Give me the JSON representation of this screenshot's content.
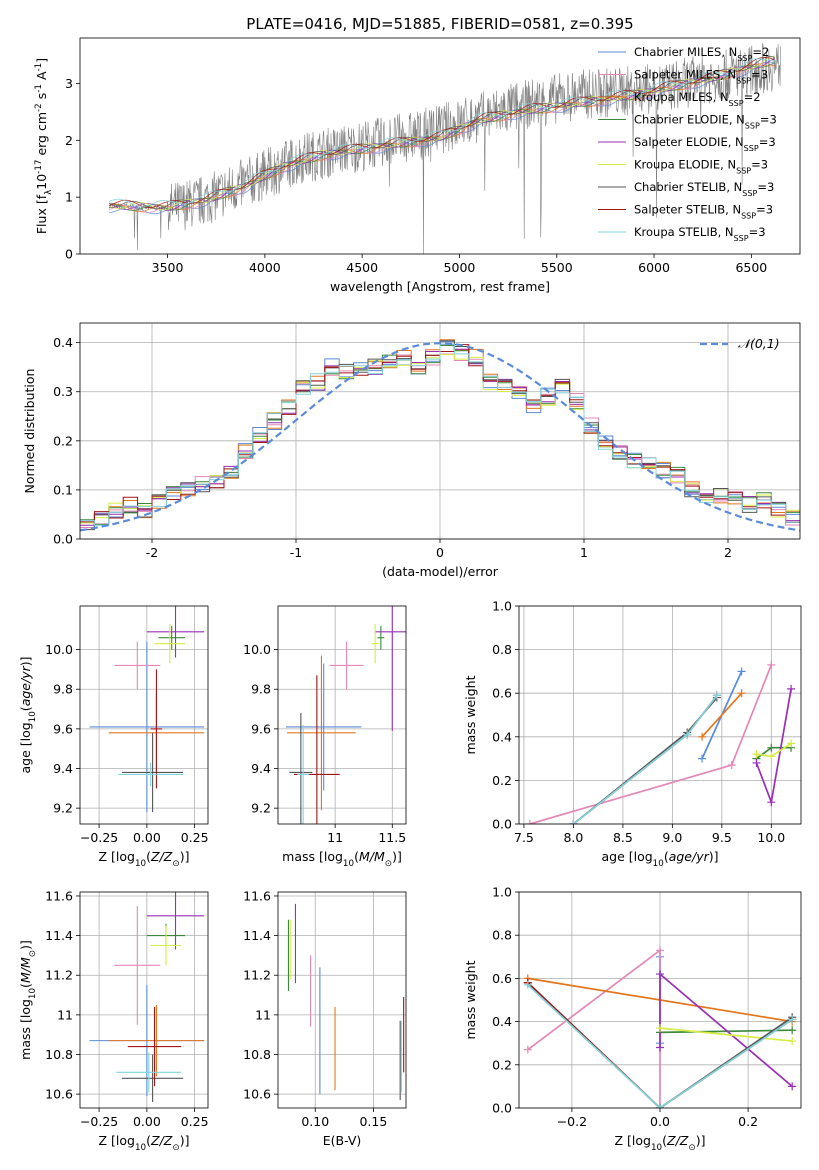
{
  "figure": {
    "title": "PLATE=0416, MJD=51885, FIBERID=0581, z=0.395"
  },
  "colors": {
    "chabrier_miles": "#5b8bd9",
    "salpeter_miles": "#e487b8",
    "kroupa_miles": "#e4761c",
    "chabrier_elodie": "#3a8a3a",
    "salpeter_elodie": "#9a2fb5",
    "kroupa_elodie": "#d6ec45",
    "chabrier_stelib": "#555555",
    "salpeter_stelib": "#a31515",
    "kroupa_stelib": "#80d4dc",
    "spectrum": "#808080",
    "gaussian": "#5b8bd9",
    "grid": "#b0b0b0"
  },
  "chart_data": [
    {
      "id": "spectrum",
      "type": "line",
      "xlabel": "wavelength [Angstrom, rest frame]",
      "ylabel": "Flux [f$_\\lambda$10$^{-17}$ erg cm$^{-2}$ s$^{-1}$ A$^{-1}$]",
      "xlim": [
        3050,
        6750
      ],
      "ylim": [
        0,
        3.8
      ],
      "xticks": [
        3500,
        4000,
        4500,
        5000,
        5500,
        6000,
        6500
      ],
      "yticks": [
        0,
        1,
        2,
        3
      ],
      "grid": false,
      "legend_position": "upper-right",
      "legend": [
        {
          "label": "Chabrier MILES, N$_{SSP}$=2",
          "color_key": "chabrier_miles"
        },
        {
          "label": "Salpeter MILES, N$_{SSP}$=3",
          "color_key": "salpeter_miles"
        },
        {
          "label": "Kroupa MILES, N$_{SSP}$=2",
          "color_key": "kroupa_miles"
        },
        {
          "label": "Chabrier ELODIE, N$_{SSP}$=3",
          "color_key": "chabrier_elodie"
        },
        {
          "label": "Salpeter ELODIE, N$_{SSP}$=3",
          "color_key": "salpeter_elodie"
        },
        {
          "label": "Kroupa ELODIE, N$_{SSP}$=3",
          "color_key": "kroupa_elodie"
        },
        {
          "label": "Chabrier STELIB, N$_{SSP}$=3",
          "color_key": "chabrier_stelib"
        },
        {
          "label": "Salpeter STELIB, N$_{SSP}$=3",
          "color_key": "salpeter_stelib"
        },
        {
          "label": "Kroupa STELIB, N$_{SSP}$=3",
          "color_key": "kroupa_stelib"
        }
      ],
      "observed_spectrum_envelope": {
        "x": [
          3200,
          3500,
          3700,
          4000,
          4200,
          4500,
          4800,
          5000,
          5300,
          5600,
          6000,
          6300,
          6600
        ],
        "y": [
          0.85,
          0.8,
          0.95,
          1.4,
          1.7,
          1.9,
          2.1,
          2.3,
          2.6,
          2.8,
          2.9,
          3.1,
          3.3
        ]
      },
      "model_fit": {
        "x": [
          3200,
          3500,
          3700,
          3900,
          4100,
          4300,
          4500,
          4700,
          4900,
          5100,
          5300,
          5500,
          5700,
          5900,
          6100,
          6300,
          6500,
          6600
        ],
        "y": [
          0.85,
          0.82,
          0.95,
          1.2,
          1.55,
          1.75,
          1.85,
          1.95,
          2.05,
          2.35,
          2.5,
          2.6,
          2.7,
          2.8,
          2.95,
          3.1,
          3.3,
          3.4
        ]
      }
    },
    {
      "id": "residual_hist",
      "type": "line",
      "xlabel": "(data-model)/error",
      "ylabel": "Normed distribution",
      "xlim": [
        -2.5,
        2.5
      ],
      "ylim": [
        0,
        0.44
      ],
      "xticks": [
        -2,
        -1,
        0,
        1,
        2
      ],
      "yticks": [
        0.0,
        0.1,
        0.2,
        0.3,
        0.4
      ],
      "grid": true,
      "legend_position": "upper-right",
      "legend": [
        {
          "label": "$\\mathcal{N}(0,1)$",
          "color_key": "gaussian"
        }
      ],
      "bin_centers": [
        -2.45,
        -2.35,
        -2.25,
        -2.15,
        -2.05,
        -1.95,
        -1.85,
        -1.75,
        -1.65,
        -1.55,
        -1.45,
        -1.35,
        -1.25,
        -1.15,
        -1.05,
        -0.95,
        -0.85,
        -0.75,
        -0.65,
        -0.55,
        -0.45,
        -0.35,
        -0.25,
        -0.15,
        -0.05,
        0.05,
        0.15,
        0.25,
        0.35,
        0.45,
        0.55,
        0.65,
        0.75,
        0.85,
        0.95,
        1.05,
        1.15,
        1.25,
        1.35,
        1.45,
        1.55,
        1.65,
        1.75,
        1.85,
        1.95,
        2.05,
        2.15,
        2.25,
        2.35,
        2.45
      ],
      "mean_hist": [
        0.035,
        0.045,
        0.06,
        0.07,
        0.06,
        0.075,
        0.09,
        0.1,
        0.11,
        0.12,
        0.14,
        0.18,
        0.21,
        0.24,
        0.27,
        0.31,
        0.32,
        0.35,
        0.34,
        0.35,
        0.35,
        0.36,
        0.37,
        0.35,
        0.37,
        0.39,
        0.38,
        0.37,
        0.32,
        0.31,
        0.3,
        0.27,
        0.29,
        0.31,
        0.28,
        0.23,
        0.2,
        0.18,
        0.16,
        0.15,
        0.14,
        0.13,
        0.1,
        0.09,
        0.09,
        0.08,
        0.07,
        0.08,
        0.06,
        0.045
      ]
    },
    {
      "id": "age_vs_Z",
      "type": "scatter",
      "xlabel": "Z [log$_{10}$($Z/Z_\\odot$)]",
      "ylabel": "age  [log$_{10}$($age/yr$)]",
      "xlim": [
        -0.35,
        0.32
      ],
      "ylim": [
        9.12,
        10.22
      ],
      "xticks": [
        -0.25,
        0.0,
        0.25
      ],
      "xtick_labels": [
        "−0.25",
        "0.00",
        "0.25"
      ],
      "yticks": [
        9.2,
        9.4,
        9.6,
        9.8,
        10.0
      ],
      "yticklabels": [
        "9.2",
        "9.4",
        "9.6",
        "9.8",
        "10.0"
      ],
      "grid": true,
      "points": [
        {
          "color_key": "chabrier_miles",
          "x": 0.0,
          "xerr": 0.3,
          "y": 9.61,
          "yerr": 0.43
        },
        {
          "color_key": "kroupa_miles",
          "x": 0.05,
          "xerr": 0.25,
          "y": 9.58,
          "yerr": 0.2
        },
        {
          "color_key": "salpeter_miles",
          "x": -0.05,
          "xerr": 0.12,
          "y": 9.92,
          "yerr": 0.12
        },
        {
          "color_key": "chabrier_elodie",
          "x": 0.13,
          "xerr": 0.07,
          "y": 10.06,
          "yerr": 0.06
        },
        {
          "color_key": "salpeter_elodie",
          "x": 0.15,
          "xerr": 0.15,
          "y": 10.09,
          "yerr": 0.13
        },
        {
          "color_key": "kroupa_elodie",
          "x": 0.12,
          "xerr": 0.08,
          "y": 10.03,
          "yerr": 0.1
        },
        {
          "color_key": "chabrier_stelib",
          "x": 0.03,
          "xerr": 0.16,
          "y": 9.38,
          "yerr": 0.2
        },
        {
          "color_key": "salpeter_stelib",
          "x": 0.05,
          "xerr": 0.03,
          "y": 9.6,
          "yerr": 0.3
        },
        {
          "color_key": "kroupa_stelib",
          "x": 0.02,
          "xerr": 0.17,
          "y": 9.37,
          "yerr": 0.06
        }
      ]
    },
    {
      "id": "age_vs_mass",
      "type": "scatter",
      "xlabel": "mass [log$_{10}$($M/M_\\odot$)]",
      "ylabel": "",
      "xlim": [
        10.5,
        11.62
      ],
      "ylim": [
        9.12,
        10.22
      ],
      "xticks": [
        11.0,
        11.5
      ],
      "yticks": [
        9.2,
        9.4,
        9.6,
        9.8,
        10.0
      ],
      "yticklabels": [
        "9.2",
        "9.4",
        "9.6",
        "9.8",
        "10.0"
      ],
      "grid": true,
      "points": [
        {
          "color_key": "chabrier_miles",
          "x": 10.9,
          "xerr": 0.33,
          "y": 9.61,
          "yerr": 0.32
        },
        {
          "color_key": "kroupa_miles",
          "x": 10.88,
          "xerr": 0.3,
          "y": 9.58,
          "yerr": 0.39
        },
        {
          "color_key": "salpeter_miles",
          "x": 11.1,
          "xerr": 0.15,
          "y": 9.92,
          "yerr": 0.12
        },
        {
          "color_key": "chabrier_elodie",
          "x": 11.4,
          "xerr": 0.03,
          "y": 10.06,
          "yerr": 0.06
        },
        {
          "color_key": "salpeter_elodie",
          "x": 11.5,
          "xerr": 0.15,
          "y": 10.09,
          "yerr": 0.5
        },
        {
          "color_key": "kroupa_elodie",
          "x": 11.35,
          "xerr": 0.03,
          "y": 10.03,
          "yerr": 0.1
        },
        {
          "color_key": "chabrier_stelib",
          "x": 10.7,
          "xerr": 0.1,
          "y": 9.38,
          "yerr": 0.3
        },
        {
          "color_key": "salpeter_stelib",
          "x": 10.84,
          "xerr": 0.2,
          "y": 9.37,
          "yerr": 0.5
        },
        {
          "color_key": "kroupa_stelib",
          "x": 10.72,
          "xerr": 0.05,
          "y": 9.37,
          "yerr": 0.25
        }
      ]
    },
    {
      "id": "weight_vs_age",
      "type": "line",
      "xlabel": "age  [log$_{10}$($age/yr$)]",
      "ylabel": "mass weight",
      "xlim": [
        7.45,
        10.3
      ],
      "ylim": [
        0,
        1
      ],
      "xticks": [
        7.5,
        8.0,
        8.5,
        9.0,
        9.5,
        10.0
      ],
      "xticklabels": [
        "7.5",
        "8.0",
        "8.5",
        "9.0",
        "9.5",
        "10.0"
      ],
      "yticks": [
        0.0,
        0.2,
        0.4,
        0.6,
        0.8,
        1.0
      ],
      "grid": true,
      "series": [
        {
          "color_key": "chabrier_miles",
          "x": [
            9.3,
            9.7
          ],
          "y": [
            0.3,
            0.7
          ]
        },
        {
          "color_key": "salpeter_miles",
          "x": [
            7.56,
            9.6,
            10.0
          ],
          "y": [
            0.0,
            0.27,
            0.73
          ]
        },
        {
          "color_key": "kroupa_miles",
          "x": [
            9.3,
            9.7
          ],
          "y": [
            0.4,
            0.6
          ]
        },
        {
          "color_key": "chabrier_elodie",
          "x": [
            9.85,
            10.0,
            10.2
          ],
          "y": [
            0.3,
            0.35,
            0.35
          ]
        },
        {
          "color_key": "salpeter_elodie",
          "x": [
            9.85,
            10.0,
            10.2
          ],
          "y": [
            0.28,
            0.1,
            0.62
          ]
        },
        {
          "color_key": "kroupa_elodie",
          "x": [
            9.85,
            10.0,
            10.2
          ],
          "y": [
            0.32,
            0.31,
            0.37
          ]
        },
        {
          "color_key": "chabrier_stelib",
          "x": [
            8.0,
            9.15,
            9.45
          ],
          "y": [
            0.0,
            0.42,
            0.58
          ]
        },
        {
          "color_key": "salpeter_stelib",
          "x": [
            8.0,
            9.15,
            9.45
          ],
          "y": [
            0.0,
            0.41,
            0.59
          ]
        },
        {
          "color_key": "kroupa_stelib",
          "x": [
            8.0,
            9.15,
            9.45
          ],
          "y": [
            0.0,
            0.41,
            0.59
          ]
        }
      ]
    },
    {
      "id": "mass_vs_Z",
      "type": "scatter",
      "xlabel": "Z [log$_{10}$($Z/Z_\\odot$)]",
      "ylabel": "mass [log$_{10}$($M/M_\\odot$)]",
      "xlim": [
        -0.35,
        0.32
      ],
      "ylim": [
        10.53,
        11.62
      ],
      "xticks": [
        -0.25,
        0.0,
        0.25
      ],
      "xtick_labels": [
        "−0.25",
        "0.00",
        "0.25"
      ],
      "yticks": [
        10.6,
        10.8,
        11.0,
        11.2,
        11.4,
        11.6
      ],
      "grid": true,
      "points": [
        {
          "color_key": "chabrier_miles",
          "x": 0.0,
          "xerr": 0.3,
          "y": 10.87,
          "yerr": 0.28
        },
        {
          "color_key": "kroupa_miles",
          "x": 0.05,
          "xerr": 0.25,
          "y": 10.87,
          "yerr": 0.18
        },
        {
          "color_key": "salpeter_miles",
          "x": -0.05,
          "xerr": 0.12,
          "y": 11.25,
          "yerr": 0.3
        },
        {
          "color_key": "chabrier_elodie",
          "x": 0.1,
          "xerr": 0.1,
          "y": 11.4,
          "yerr": 0.06
        },
        {
          "color_key": "salpeter_elodie",
          "x": 0.15,
          "xerr": 0.15,
          "y": 11.5,
          "yerr": 0.17
        },
        {
          "color_key": "kroupa_elodie",
          "x": 0.1,
          "xerr": 0.08,
          "y": 11.35,
          "yerr": 0.1
        },
        {
          "color_key": "chabrier_stelib",
          "x": 0.03,
          "xerr": 0.16,
          "y": 10.68,
          "yerr": 0.12
        },
        {
          "color_key": "salpeter_stelib",
          "x": 0.04,
          "xerr": 0.14,
          "y": 10.84,
          "yerr": 0.2
        },
        {
          "color_key": "kroupa_stelib",
          "x": 0.01,
          "xerr": 0.17,
          "y": 10.71,
          "yerr": 0.1
        }
      ]
    },
    {
      "id": "mass_vs_ebv",
      "type": "scatter",
      "xlabel": "E(B-V)",
      "ylabel": "",
      "xlim": [
        0.068,
        0.178
      ],
      "ylim": [
        10.53,
        11.62
      ],
      "xticks": [
        0.1,
        0.15
      ],
      "xticklabels": [
        "0.10",
        "0.15"
      ],
      "yticks": [
        10.6,
        10.8,
        11.0,
        11.2,
        11.4,
        11.6
      ],
      "grid": true,
      "points": [
        {
          "color_key": "chabrier_miles",
          "x": 0.104,
          "xerr": 0.0,
          "y": 10.92,
          "yerr": 0.32
        },
        {
          "color_key": "kroupa_miles",
          "x": 0.117,
          "xerr": 0.0,
          "y": 10.83,
          "yerr": 0.21
        },
        {
          "color_key": "salpeter_miles",
          "x": 0.096,
          "xerr": 0.0,
          "y": 11.12,
          "yerr": 0.18
        },
        {
          "color_key": "chabrier_elodie",
          "x": 0.077,
          "xerr": 0.0,
          "y": 11.3,
          "yerr": 0.18
        },
        {
          "color_key": "salpeter_elodie",
          "x": 0.083,
          "xerr": 0.0,
          "y": 11.36,
          "yerr": 0.2
        },
        {
          "color_key": "kroupa_elodie",
          "x": 0.079,
          "xerr": 0.0,
          "y": 11.33,
          "yerr": 0.15
        },
        {
          "color_key": "chabrier_stelib",
          "x": 0.173,
          "xerr": 0.0,
          "y": 10.77,
          "yerr": 0.2
        },
        {
          "color_key": "salpeter_stelib",
          "x": 0.176,
          "xerr": 0.0,
          "y": 10.9,
          "yerr": 0.19
        },
        {
          "color_key": "kroupa_stelib",
          "x": 0.174,
          "xerr": 0.0,
          "y": 10.79,
          "yerr": 0.18
        }
      ]
    },
    {
      "id": "weight_vs_Z",
      "type": "line",
      "xlabel": "Z [log$_{10}$($Z/Z_\\odot$)]",
      "ylabel": "mass weight",
      "xlim": [
        -0.32,
        0.32
      ],
      "ylim": [
        0,
        1
      ],
      "xticks": [
        -0.2,
        0.0,
        0.2
      ],
      "xtick_labels": [
        "−0.2",
        "0.0",
        "0.2"
      ],
      "yticks": [
        0.0,
        0.2,
        0.4,
        0.6,
        0.8,
        1.0
      ],
      "grid": true,
      "series": [
        {
          "color_key": "chabrier_miles",
          "x": [
            0.0,
            0.0
          ],
          "y": [
            0.3,
            0.7
          ]
        },
        {
          "color_key": "salpeter_miles",
          "x": [
            -0.3,
            0.0,
            0.0
          ],
          "y": [
            0.27,
            0.73,
            0.0
          ]
        },
        {
          "color_key": "kroupa_miles",
          "x": [
            -0.3,
            0.3
          ],
          "y": [
            0.6,
            0.4
          ]
        },
        {
          "color_key": "chabrier_elodie",
          "x": [
            0.0,
            0.3
          ],
          "y": [
            0.35,
            0.36
          ]
        },
        {
          "color_key": "salpeter_elodie",
          "x": [
            0.0,
            0.0,
            0.3
          ],
          "y": [
            0.28,
            0.62,
            0.1
          ]
        },
        {
          "color_key": "kroupa_elodie",
          "x": [
            0.0,
            0.3
          ],
          "y": [
            0.37,
            0.31
          ]
        },
        {
          "color_key": "chabrier_stelib",
          "x": [
            -0.3,
            0.0,
            0.3
          ],
          "y": [
            0.58,
            0.0,
            0.42
          ]
        },
        {
          "color_key": "salpeter_stelib",
          "x": [
            -0.3,
            0.0,
            0.3
          ],
          "y": [
            0.58,
            0.0,
            0.41
          ]
        },
        {
          "color_key": "kroupa_stelib",
          "x": [
            -0.3,
            0.0,
            0.3
          ],
          "y": [
            0.57,
            0.0,
            0.41
          ]
        }
      ]
    }
  ]
}
